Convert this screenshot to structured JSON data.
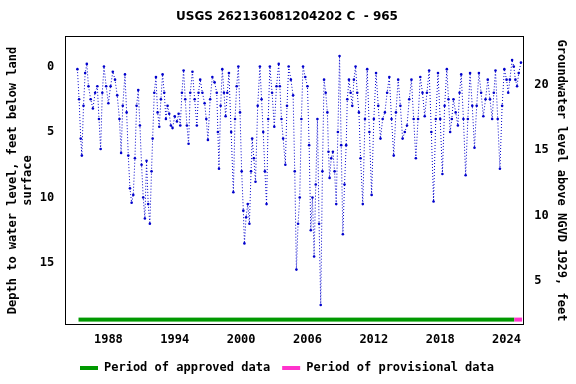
{
  "chart_data": {
    "type": "line",
    "title": "USGS 262136081204202 C  - 965",
    "ylabel": [
      "Depth to water level, feet below land",
      "surface"
    ],
    "y2label": "Groundwater level above NGVD 1929, feet",
    "xlim": [
      1984.1,
      2025.5
    ],
    "xticks": [
      1988,
      1994,
      2000,
      2006,
      2012,
      2018,
      2024
    ],
    "ylim": [
      19.7,
      -2.3
    ],
    "yticks": [
      0,
      5,
      10,
      15
    ],
    "y2lim": [
      1.7,
      23.7
    ],
    "y2ticks": [
      5,
      10,
      15,
      20
    ],
    "grid": false,
    "legend": "bottom",
    "series": [
      {
        "color": "#0000cc",
        "marker": "circle",
        "line_style": "dotted",
        "x": [
          1985.2,
          1985.35,
          1985.5,
          1985.6,
          1985.75,
          1985.9,
          1986.05,
          1986.2,
          1986.4,
          1986.6,
          1986.8,
          1987.0,
          1987.15,
          1987.3,
          1987.45,
          1987.6,
          1987.8,
          1988.0,
          1988.2,
          1988.4,
          1988.6,
          1988.8,
          1989.0,
          1989.15,
          1989.3,
          1989.5,
          1989.65,
          1989.8,
          1989.95,
          1990.1,
          1990.25,
          1990.4,
          1990.55,
          1990.7,
          1990.85,
          1991.0,
          1991.15,
          1991.3,
          1991.45,
          1991.6,
          1991.75,
          1991.9,
          1992.0,
          1992.15,
          1992.3,
          1992.45,
          1992.6,
          1992.75,
          1992.9,
          1993.05,
          1993.2,
          1993.35,
          1993.5,
          1993.65,
          1993.8,
          1994.0,
          1994.2,
          1994.35,
          1994.5,
          1994.65,
          1994.8,
          1994.95,
          1995.1,
          1995.25,
          1995.4,
          1995.6,
          1995.8,
          1996.0,
          1996.15,
          1996.3,
          1996.5,
          1996.7,
          1996.85,
          1997.0,
          1997.2,
          1997.4,
          1997.6,
          1997.8,
          1997.9,
          1998.0,
          1998.15,
          1998.3,
          1998.45,
          1998.6,
          1998.75,
          1998.9,
          1999.1,
          1999.3,
          1999.45,
          1999.6,
          1999.75,
          1999.9,
          2000.05,
          2000.2,
          2000.3,
          2000.45,
          2000.6,
          2000.75,
          2000.9,
          2001.0,
          2001.15,
          2001.3,
          2001.5,
          2001.7,
          2001.85,
          2002.0,
          2002.15,
          2002.3,
          2002.45,
          2002.6,
          2002.8,
          2003.0,
          2003.2,
          2003.4,
          2003.5,
          2003.65,
          2003.8,
          2004.0,
          2004.15,
          2004.3,
          2004.5,
          2004.7,
          2004.85,
          2005.0,
          2005.15,
          2005.3,
          2005.45,
          2005.6,
          2005.8,
          2006.0,
          2006.15,
          2006.3,
          2006.45,
          2006.6,
          2006.75,
          2006.9,
          2007.05,
          2007.2,
          2007.35,
          2007.5,
          2007.65,
          2007.8,
          2007.9,
          2008.0,
          2008.15,
          2008.3,
          2008.45,
          2008.6,
          2008.75,
          2008.9,
          2009.05,
          2009.2,
          2009.35,
          2009.5,
          2009.6,
          2009.75,
          2009.9,
          2010.05,
          2010.2,
          2010.35,
          2010.5,
          2010.65,
          2010.8,
          2011.0,
          2011.2,
          2011.4,
          2011.6,
          2011.8,
          2012.0,
          2012.2,
          2012.4,
          2012.6,
          2012.8,
          2013.0,
          2013.2,
          2013.4,
          2013.6,
          2013.8,
          2014.0,
          2014.2,
          2014.4,
          2014.6,
          2014.8,
          2015.0,
          2015.2,
          2015.4,
          2015.6,
          2015.8,
          2016.0,
          2016.2,
          2016.4,
          2016.6,
          2016.8,
          2017.0,
          2017.2,
          2017.4,
          2017.6,
          2017.8,
          2018.0,
          2018.2,
          2018.4,
          2018.6,
          2018.75,
          2018.9,
          2019.05,
          2019.2,
          2019.4,
          2019.6,
          2019.75,
          2019.9,
          2020.1,
          2020.3,
          2020.5,
          2020.7,
          2020.9,
          2021.1,
          2021.3,
          2021.5,
          2021.7,
          2021.9,
          2022.1,
          2022.3,
          2022.5,
          2022.7,
          2022.85,
          2023.0,
          2023.2,
          2023.4,
          2023.6,
          2023.8,
          2024.0,
          2024.15,
          2024.3,
          2024.5,
          2024.65,
          2024.8,
          2024.95,
          2025.1,
          2025.3
        ],
        "values": [
          0.2,
          2.5,
          5.5,
          6.8,
          3,
          0.5,
          -0.2,
          1.5,
          2.5,
          3.2,
          2,
          1.5,
          4,
          6.3,
          2,
          0,
          1.5,
          2.8,
          1.5,
          0.4,
          1,
          2.2,
          4,
          6.6,
          3,
          0.6,
          3.5,
          6.8,
          9.3,
          10.4,
          9.8,
          7,
          3,
          1.8,
          4.5,
          7.5,
          10,
          11.6,
          7.2,
          10.5,
          12,
          8,
          5.5,
          2,
          0.8,
          3.5,
          4.6,
          2.5,
          0.6,
          2,
          4,
          3,
          3.6,
          4.5,
          4.7,
          3.8,
          4.2,
          3.6,
          4.5,
          2,
          0.3,
          2.5,
          4.5,
          5.9,
          2,
          0.4,
          2.5,
          4.5,
          2,
          1,
          2,
          2.8,
          4,
          5.6,
          2.5,
          0.8,
          1.2,
          2,
          5,
          7.8,
          3,
          0.2,
          2,
          3.8,
          2,
          0.5,
          5,
          9.6,
          4,
          1.5,
          0,
          3.5,
          8,
          11,
          13.5,
          11.5,
          10.5,
          12,
          8,
          5.5,
          7,
          8.8,
          3,
          0,
          2.5,
          5,
          8,
          10.5,
          4,
          0,
          2,
          4.6,
          1.5,
          -0.2,
          1.5,
          4,
          5.5,
          7.5,
          3,
          0,
          1,
          2.2,
          8,
          15.5,
          12,
          10,
          4,
          0,
          0.8,
          1.5,
          6,
          12.5,
          10,
          14.5,
          9,
          4,
          12,
          18.2,
          8,
          1,
          2,
          3.5,
          6.5,
          8.5,
          7,
          6.5,
          8,
          10.5,
          5,
          -0.8,
          6,
          12.8,
          9,
          6,
          2.5,
          1,
          2,
          3,
          1,
          0,
          2,
          3.5,
          7,
          10.5,
          4,
          0.2,
          5,
          9.8,
          4,
          0.5,
          3,
          5.5,
          4,
          3.5,
          2,
          0.8,
          4,
          6.8,
          3.5,
          1,
          3,
          5.5,
          5,
          4.5,
          2.5,
          1,
          4,
          7,
          4,
          0.8,
          2,
          3.8,
          2,
          0.3,
          5,
          10.3,
          4,
          0.5,
          4,
          8.2,
          3,
          0.2,
          2.5,
          5,
          4,
          2.5,
          3.5,
          4.5,
          2,
          0.6,
          4,
          8.3,
          4,
          0.5,
          3,
          6.2,
          3,
          0.5,
          2,
          3.8,
          2.5,
          1,
          2.5,
          4,
          2,
          0.3,
          4,
          7.8,
          3,
          0.2,
          1,
          2,
          1,
          -0.5,
          0,
          1,
          1.5,
          0.5,
          -0.3
        ]
      },
      {
        "name": "Period of approved data",
        "type": "period",
        "color": "#009900",
        "x": [
          1985.3,
          2024.7
        ]
      },
      {
        "name": "Period of provisional data",
        "type": "period",
        "color": "#ff33cc",
        "x": [
          2024.7,
          2025.4
        ]
      }
    ]
  }
}
